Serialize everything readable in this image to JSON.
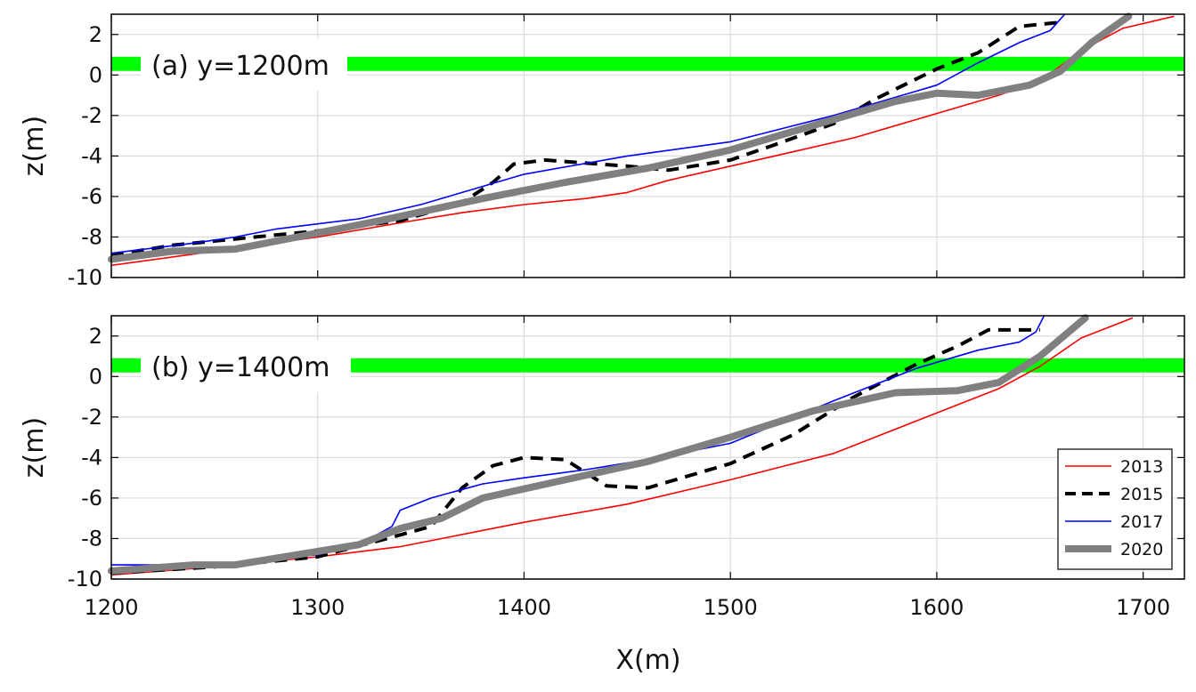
{
  "chart_data": [
    {
      "type": "line",
      "panel_label": "(a) y=1200m",
      "xlabel": "",
      "ylabel": "z(m)",
      "xlim": [
        1200,
        1720
      ],
      "ylim": [
        -10,
        3
      ],
      "xticks": [
        1200,
        1300,
        1400,
        1500,
        1600,
        1700
      ],
      "yticks": [
        2,
        0,
        -2,
        -4,
        -6,
        -8,
        -10
      ],
      "grid": true,
      "shaded_band": {
        "y_range": [
          0.2,
          0.9
        ],
        "color": "#00ff00"
      },
      "series": [
        {
          "name": "2013",
          "color": "#ff0000",
          "style": "thin-solid",
          "x": [
            1200,
            1250,
            1300,
            1340,
            1370,
            1400,
            1430,
            1450,
            1470,
            1500,
            1530,
            1560,
            1600,
            1630,
            1650,
            1670,
            1690,
            1715
          ],
          "y": [
            -9.4,
            -8.7,
            -8.0,
            -7.3,
            -6.8,
            -6.4,
            -6.1,
            -5.8,
            -5.2,
            -4.5,
            -3.8,
            -3.1,
            -1.9,
            -1.0,
            -0.3,
            1.2,
            2.3,
            2.9
          ]
        },
        {
          "name": "2015",
          "color": "#000000",
          "style": "thick-dashed",
          "x": [
            1200,
            1230,
            1260,
            1300,
            1340,
            1370,
            1385,
            1395,
            1410,
            1450,
            1470,
            1500,
            1520,
            1550,
            1570,
            1600,
            1620,
            1640,
            1660
          ],
          "y": [
            -8.9,
            -8.4,
            -8.1,
            -7.7,
            -7.2,
            -6.3,
            -5.3,
            -4.4,
            -4.2,
            -4.5,
            -4.7,
            -4.2,
            -3.5,
            -2.4,
            -1.2,
            0.3,
            1.1,
            2.4,
            2.6
          ]
        },
        {
          "name": "2017",
          "color": "#0000ff",
          "style": "thin-solid",
          "x": [
            1200,
            1240,
            1260,
            1280,
            1320,
            1350,
            1400,
            1450,
            1500,
            1550,
            1600,
            1620,
            1640,
            1655,
            1662
          ],
          "y": [
            -8.8,
            -8.3,
            -8.0,
            -7.6,
            -7.1,
            -6.4,
            -4.9,
            -4.0,
            -3.3,
            -2.0,
            -0.5,
            0.6,
            1.6,
            2.2,
            3.0
          ]
        },
        {
          "name": "2020",
          "color": "#808080",
          "style": "thick-solid",
          "x": [
            1200,
            1230,
            1260,
            1290,
            1330,
            1380,
            1420,
            1460,
            1500,
            1540,
            1580,
            1600,
            1620,
            1645,
            1660,
            1675,
            1693
          ],
          "y": [
            -9.1,
            -8.7,
            -8.6,
            -8.0,
            -7.2,
            -6.1,
            -5.3,
            -4.6,
            -3.7,
            -2.5,
            -1.3,
            -0.9,
            -1.0,
            -0.5,
            0.2,
            1.6,
            2.9
          ]
        }
      ]
    },
    {
      "type": "line",
      "panel_label": "(b) y=1400m",
      "xlabel": "X(m)",
      "ylabel": "z(m)",
      "xlim": [
        1200,
        1720
      ],
      "ylim": [
        -10,
        3
      ],
      "xticks": [
        1200,
        1300,
        1400,
        1500,
        1600,
        1700
      ],
      "xtick_labels": [
        "1200",
        "1300",
        "1400",
        "1500",
        "1600",
        "1700"
      ],
      "yticks": [
        2,
        0,
        -2,
        -4,
        -6,
        -8,
        -10
      ],
      "grid": true,
      "shaded_band": {
        "y_range": [
          0.2,
          0.9
        ],
        "color": "#00ff00"
      },
      "legend": {
        "position": "bottom-right",
        "entries": [
          "2013",
          "2015",
          "2017",
          "2020"
        ]
      },
      "series": [
        {
          "name": "2013",
          "color": "#ff0000",
          "style": "thin-solid",
          "x": [
            1200,
            1250,
            1300,
            1340,
            1360,
            1400,
            1450,
            1500,
            1550,
            1600,
            1630,
            1650,
            1670,
            1695
          ],
          "y": [
            -9.8,
            -9.4,
            -8.9,
            -8.4,
            -8.0,
            -7.2,
            -6.3,
            -5.1,
            -3.8,
            -1.8,
            -0.6,
            0.5,
            1.9,
            2.9
          ]
        },
        {
          "name": "2015",
          "color": "#000000",
          "style": "thick-dashed",
          "x": [
            1200,
            1250,
            1300,
            1330,
            1355,
            1362,
            1370,
            1385,
            1400,
            1420,
            1440,
            1460,
            1500,
            1530,
            1560,
            1590,
            1610,
            1625,
            1650
          ],
          "y": [
            -9.7,
            -9.4,
            -8.9,
            -8.1,
            -7.4,
            -6.5,
            -5.5,
            -4.4,
            -4.0,
            -4.1,
            -5.4,
            -5.5,
            -4.3,
            -2.9,
            -1.0,
            0.6,
            1.5,
            2.3,
            2.3
          ]
        },
        {
          "name": "2017",
          "color": "#0000ff",
          "style": "thin-solid",
          "x": [
            1200,
            1250,
            1300,
            1320,
            1336,
            1340,
            1355,
            1380,
            1400,
            1430,
            1460,
            1500,
            1550,
            1590,
            1620,
            1640,
            1648,
            1652
          ],
          "y": [
            -9.3,
            -9.3,
            -8.8,
            -8.3,
            -7.4,
            -6.6,
            -6.0,
            -5.3,
            -5.0,
            -4.6,
            -4.1,
            -3.3,
            -1.2,
            0.4,
            1.3,
            1.7,
            2.2,
            3.0
          ]
        },
        {
          "name": "2020",
          "color": "#808080",
          "style": "thick-solid",
          "x": [
            1200,
            1240,
            1260,
            1290,
            1320,
            1340,
            1360,
            1380,
            1420,
            1460,
            1500,
            1540,
            1580,
            1610,
            1630,
            1650,
            1672
          ],
          "y": [
            -9.6,
            -9.3,
            -9.3,
            -8.8,
            -8.3,
            -7.5,
            -7.0,
            -6.0,
            -5.1,
            -4.2,
            -3.0,
            -1.7,
            -0.8,
            -0.7,
            -0.3,
            1.0,
            2.9
          ]
        }
      ]
    }
  ],
  "colors": {
    "red": "#ff0000",
    "black": "#000000",
    "blue": "#0000ff",
    "gray": "#808080",
    "band": "#00ff00"
  }
}
